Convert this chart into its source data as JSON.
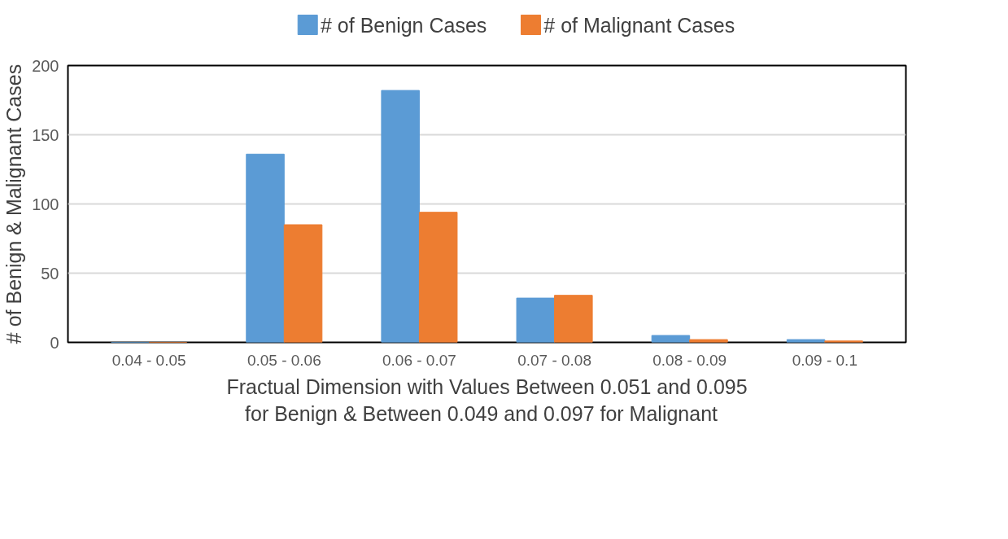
{
  "chart_data": {
    "type": "bar",
    "xlabel": "Fractual Dimension with Values Between 0.051 and 0.095\nfor  Benign &  Between 0.049 and 0.097 for Malignant",
    "ylabel": "# of Benign & Malignant Cases",
    "categories": [
      "0.04 - 0.05",
      "0.05 - 0.06",
      "0.06 - 0.07",
      "0.07 - 0.08",
      "0.08 - 0.09",
      "0.09 - 0.1"
    ],
    "series": [
      {
        "name": "# of Benign Cases",
        "color": "#5b9bd5",
        "values": [
          0,
          136,
          182,
          32,
          5,
          2
        ]
      },
      {
        "name": "# of Malignant Cases",
        "color": "#ed7d31",
        "values": [
          0,
          85,
          94,
          34,
          2,
          1
        ]
      }
    ],
    "ylim": [
      0,
      200
    ],
    "yticks": [
      0,
      50,
      100,
      150,
      200
    ],
    "grid": "y",
    "legend": "top"
  }
}
